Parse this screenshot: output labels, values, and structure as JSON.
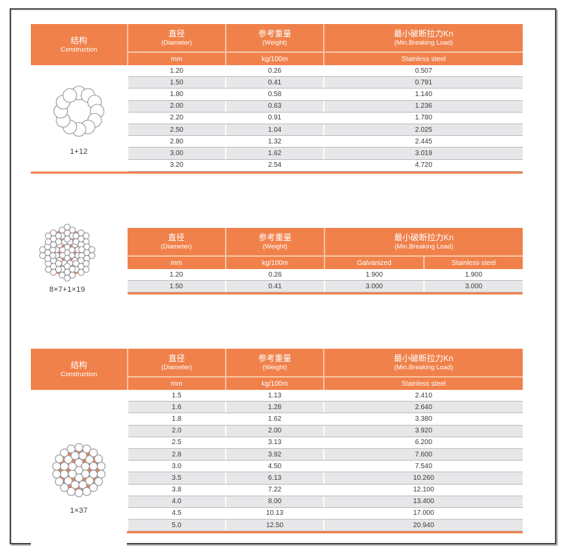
{
  "theme": {
    "orange": "#F0814B",
    "stripe": "#E7E7E9",
    "row_line": "#BCBCBE",
    "text_color": "#3A3A3C",
    "header_text_color": "#FFFFFF",
    "frame_border": "#48484B"
  },
  "tables": [
    {
      "name": "rope-1-plus-12",
      "construction": {
        "type": "1+12",
        "label": "1+12"
      },
      "header": {
        "construction": {
          "zh": "结构",
          "en": "Construction"
        },
        "diameter": {
          "zh": "直径",
          "en": "(Diameter)"
        },
        "weight": {
          "zh": "参考重量",
          "en": "(Weight)"
        },
        "breaking": {
          "zh": "最小破断拉力Kn",
          "en": "(Min.Breaking Load)"
        },
        "units": {
          "diameter": "mm",
          "weight": "kg/100m"
        },
        "breaking_cols": [
          "Stainless steel"
        ]
      },
      "rows": [
        [
          "1.20",
          "0.26",
          "0.507"
        ],
        [
          "1.50",
          "0.41",
          "0.791"
        ],
        [
          "1.80",
          "0.58",
          "1.140"
        ],
        [
          "2.00",
          "0.63",
          "1.236"
        ],
        [
          "2.20",
          "0.91",
          "1.780"
        ],
        [
          "2.50",
          "1.04",
          "2.025"
        ],
        [
          "2.80",
          "1.32",
          "2.445"
        ],
        [
          "3.00",
          "1.62",
          "3.019"
        ],
        [
          "3.20",
          "2.54",
          "4.720"
        ]
      ]
    },
    {
      "name": "rope-8x7-plus-1x19",
      "construction": {
        "type": "8x7+1x19",
        "label": "8×7+1×19"
      },
      "header": {
        "diameter": {
          "zh": "直径",
          "en": "(Diameter)"
        },
        "weight": {
          "zh": "参考重量",
          "en": "(Weight)"
        },
        "breaking": {
          "zh": "最小破断拉力Kn",
          "en": "(Min.Breaking Load)"
        },
        "units": {
          "diameter": "mm",
          "weight": "kg/100m"
        },
        "breaking_cols": [
          "Galvanized",
          "Stainless steel"
        ]
      },
      "rows": [
        [
          "1.20",
          "0.26",
          "1.900",
          "1.900"
        ],
        [
          "1.50",
          "0.41",
          "3.000",
          "3.000"
        ]
      ]
    },
    {
      "name": "rope-1x37",
      "construction": {
        "type": "1x37",
        "label": "1×37"
      },
      "header": {
        "construction": {
          "zh": "结构",
          "en": "Construction"
        },
        "diameter": {
          "zh": "直径",
          "en": "(Diameter)"
        },
        "weight": {
          "zh": "参考重量",
          "en": "(Weight)"
        },
        "breaking": {
          "zh": "最小破断拉力Kn",
          "en": "(Min.Breaking Load)"
        },
        "units": {
          "diameter": "mm",
          "weight": "kg/100m"
        },
        "breaking_cols": [
          "Stainless steel"
        ]
      },
      "rows": [
        [
          "1.5",
          "1.13",
          "2.410"
        ],
        [
          "1.6",
          "1.28",
          "2.640"
        ],
        [
          "1.8",
          "1.62",
          "3.380"
        ],
        [
          "2.0",
          "2.00",
          "3.920"
        ],
        [
          "2.5",
          "3.13",
          "6.200"
        ],
        [
          "2.8",
          "3.92",
          "7.600"
        ],
        [
          "3.0",
          "4.50",
          "7.540"
        ],
        [
          "3.5",
          "6.13",
          "10.260"
        ],
        [
          "3.8",
          "7.22",
          "12.100"
        ],
        [
          "4.0",
          "8.00",
          "13.400"
        ],
        [
          "4.5",
          "10.13",
          "17.000"
        ],
        [
          "5.0",
          "12.50",
          "20.940"
        ]
      ]
    }
  ]
}
